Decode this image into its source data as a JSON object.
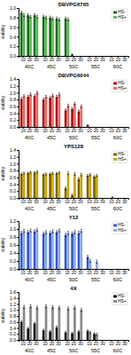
{
  "chart_data": [
    {
      "type": "bar",
      "title": "DBVPG6765",
      "ylabel": "viability",
      "categories": [
        "10",
        "20",
        "30",
        "10",
        "20",
        "30",
        "10",
        "20",
        "30",
        "10",
        "20",
        "30",
        "10",
        "20",
        "30"
      ],
      "category_groups": [
        "40C",
        "45C",
        "50C",
        "55C",
        "60C"
      ],
      "series": [
        {
          "name": "HS-",
          "color": "#1a6b1a",
          "values": [
            0.9,
            0.85,
            0.85,
            0.82,
            0.8,
            0.78,
            0.78,
            0.03,
            0.0,
            0.0,
            0.0,
            0.0,
            0.0,
            0.0,
            0.0
          ],
          "errors": [
            0.03,
            0.03,
            0.03,
            0.03,
            0.03,
            0.03,
            0.03,
            0.01,
            0.0,
            0.0,
            0.0,
            0.0,
            0.0,
            0.0,
            0.0
          ]
        },
        {
          "name": "HS+",
          "color": "#55bb55",
          "values": [
            0.85,
            0.82,
            0.82,
            0.8,
            0.78,
            0.76,
            0.76,
            0.0,
            0.0,
            0.0,
            0.0,
            0.0,
            0.0,
            0.0,
            0.0
          ],
          "errors": [
            0.03,
            0.03,
            0.03,
            0.03,
            0.03,
            0.03,
            0.03,
            0.0,
            0.0,
            0.0,
            0.0,
            0.0,
            0.0,
            0.0,
            0.0
          ]
        }
      ],
      "ylim": [
        0.0,
        1.0
      ],
      "yticks": [
        {
          "value": 0,
          "label": "0.0"
        },
        0.2,
        0.4,
        0.6,
        0.8,
        {
          "value": 1,
          "label": "1.0"
        }
      ],
      "grid": false,
      "legend": "upper right"
    },
    {
      "type": "bar",
      "title": "DBVPG6044",
      "ylabel": "viability",
      "categories": [
        "10",
        "20",
        "30",
        "10",
        "20",
        "30",
        "10",
        "20",
        "30",
        "10",
        "20",
        "30",
        "10",
        "20",
        "30"
      ],
      "category_groups": [
        "40C",
        "45C",
        "50C",
        "55C",
        "60C"
      ],
      "series": [
        {
          "name": "HS-",
          "color": "#aa1111",
          "values": [
            0.82,
            0.88,
            0.9,
            0.8,
            0.85,
            0.88,
            0.48,
            0.52,
            0.45,
            0.05,
            0.0,
            0.0,
            0.0,
            0.0,
            0.0
          ],
          "errors": [
            0.04,
            0.04,
            0.04,
            0.04,
            0.04,
            0.04,
            0.04,
            0.04,
            0.04,
            0.02,
            0.0,
            0.0,
            0.0,
            0.0,
            0.0
          ]
        },
        {
          "name": "HS+",
          "color": "#ee6666",
          "values": [
            0.9,
            0.95,
            1.0,
            0.88,
            0.92,
            0.95,
            0.62,
            0.68,
            0.6,
            0.0,
            0.0,
            0.0,
            0.0,
            0.0,
            0.0
          ],
          "errors": [
            0.04,
            0.04,
            0.04,
            0.04,
            0.04,
            0.04,
            0.04,
            0.04,
            0.04,
            0.0,
            0.0,
            0.0,
            0.0,
            0.0,
            0.0
          ]
        }
      ],
      "ylim": [
        0.0,
        1.4
      ],
      "yticks": [
        {
          "value": 0,
          "label": "0.0"
        },
        0.2,
        0.4,
        0.6,
        0.8,
        {
          "value": 1,
          "label": "1.0"
        },
        1.2,
        1.4
      ],
      "grid": false,
      "legend": "upper right"
    },
    {
      "type": "bar",
      "title": "YPS128",
      "ylabel": "viability",
      "categories": [
        "10",
        "20",
        "30",
        "10",
        "20",
        "30",
        "10",
        "20",
        "30",
        "10",
        "20",
        "30",
        "10",
        "20",
        "30"
      ],
      "category_groups": [
        "40C",
        "45C",
        "50C",
        "55C",
        "60C"
      ],
      "series": [
        {
          "name": "HS-",
          "color": "#806000",
          "values": [
            0.7,
            0.72,
            0.74,
            0.68,
            0.7,
            0.72,
            0.28,
            0.08,
            0.55,
            0.65,
            0.62,
            0.0,
            0.0,
            0.0,
            0.0
          ],
          "errors": [
            0.03,
            0.03,
            0.03,
            0.03,
            0.03,
            0.03,
            0.04,
            0.03,
            0.04,
            0.03,
            0.03,
            0.0,
            0.0,
            0.0,
            0.0
          ]
        },
        {
          "name": "HS+",
          "color": "#c8a800",
          "values": [
            0.72,
            0.75,
            0.76,
            0.7,
            0.72,
            0.74,
            0.72,
            0.7,
            0.68,
            0.68,
            0.65,
            0.0,
            0.02,
            0.0,
            0.0
          ],
          "errors": [
            0.03,
            0.03,
            0.03,
            0.03,
            0.03,
            0.03,
            0.04,
            0.04,
            0.04,
            0.03,
            0.03,
            0.0,
            0.01,
            0.0,
            0.0
          ]
        }
      ],
      "ylim": [
        0.0,
        1.4
      ],
      "yticks": [
        {
          "value": 0,
          "label": "0.0"
        },
        0.2,
        0.4,
        0.6,
        0.8,
        {
          "value": 1,
          "label": "1.0"
        },
        1.2,
        1.4
      ],
      "grid": false,
      "legend": "upper right"
    },
    {
      "type": "bar",
      "title": "Y12",
      "ylabel": "viability",
      "categories": [
        "10",
        "20",
        "30",
        "10",
        "20",
        "30",
        "10",
        "20",
        "30",
        "10",
        "20",
        "30",
        "10",
        "20",
        "30"
      ],
      "category_groups": [
        "40C",
        "45C",
        "50C",
        "55C",
        "60C"
      ],
      "series": [
        {
          "name": "HS-",
          "color": "#3355cc",
          "values": [
            0.9,
            0.92,
            0.94,
            0.88,
            0.9,
            0.92,
            0.85,
            0.88,
            0.9,
            0.3,
            0.0,
            0.0,
            0.0,
            0.0,
            0.0
          ],
          "errors": [
            0.04,
            0.04,
            0.04,
            0.04,
            0.04,
            0.04,
            0.04,
            0.04,
            0.04,
            0.04,
            0.0,
            0.0,
            0.0,
            0.0,
            0.0
          ]
        },
        {
          "name": "HS+",
          "color": "#88aaee",
          "values": [
            0.95,
            0.96,
            0.98,
            0.92,
            0.94,
            0.96,
            0.9,
            0.92,
            0.95,
            0.2,
            0.18,
            0.0,
            0.0,
            0.0,
            0.0
          ],
          "errors": [
            0.04,
            0.04,
            0.04,
            0.04,
            0.04,
            0.04,
            0.04,
            0.04,
            0.04,
            0.04,
            0.04,
            0.0,
            0.0,
            0.0,
            0.0
          ]
        }
      ],
      "ylim": [
        0.0,
        1.2
      ],
      "yticks": [
        {
          "value": 0,
          "label": "0.0"
        },
        0.2,
        0.4,
        0.6,
        0.8,
        {
          "value": 1,
          "label": "1.0"
        },
        1.2
      ],
      "grid": false,
      "legend": "upper right"
    },
    {
      "type": "bar",
      "title": "4X",
      "ylabel": "viability",
      "categories": [
        "10",
        "20",
        "30",
        "10",
        "20",
        "30",
        "10",
        "20",
        "30",
        "10",
        "20",
        "30",
        "10",
        "20",
        "30"
      ],
      "category_groups": [
        "40C",
        "45C",
        "50C",
        "55C",
        "60C"
      ],
      "series": [
        {
          "name": "HS-",
          "color": "#111111",
          "values": [
            0.6,
            0.38,
            0.55,
            0.32,
            0.28,
            0.42,
            0.25,
            0.22,
            0.28,
            0.3,
            0.2,
            0.0,
            0.0,
            0.0,
            0.0
          ],
          "errors": [
            0.04,
            0.04,
            0.04,
            0.04,
            0.04,
            0.04,
            0.04,
            0.04,
            0.04,
            0.04,
            0.04,
            0.0,
            0.0,
            0.0,
            0.0
          ]
        },
        {
          "name": "HS+",
          "color": "#888888",
          "values": [
            1.1,
            1.12,
            1.08,
            1.12,
            1.1,
            1.08,
            1.05,
            1.08,
            1.0,
            0.25,
            0.18,
            0.0,
            0.0,
            0.0,
            0.0
          ],
          "errors": [
            0.05,
            0.05,
            0.05,
            0.05,
            0.05,
            0.05,
            0.05,
            0.05,
            0.05,
            0.04,
            0.04,
            0.0,
            0.0,
            0.0,
            0.0
          ]
        }
      ],
      "ylim": [
        0.0,
        1.6
      ],
      "yticks": [
        {
          "value": 0,
          "label": "0.0"
        },
        0.2,
        0.4,
        0.6,
        0.8,
        {
          "value": 1,
          "label": "1.0"
        },
        1.2,
        1.4,
        1.6
      ],
      "grid": false,
      "legend": "upper right"
    }
  ]
}
